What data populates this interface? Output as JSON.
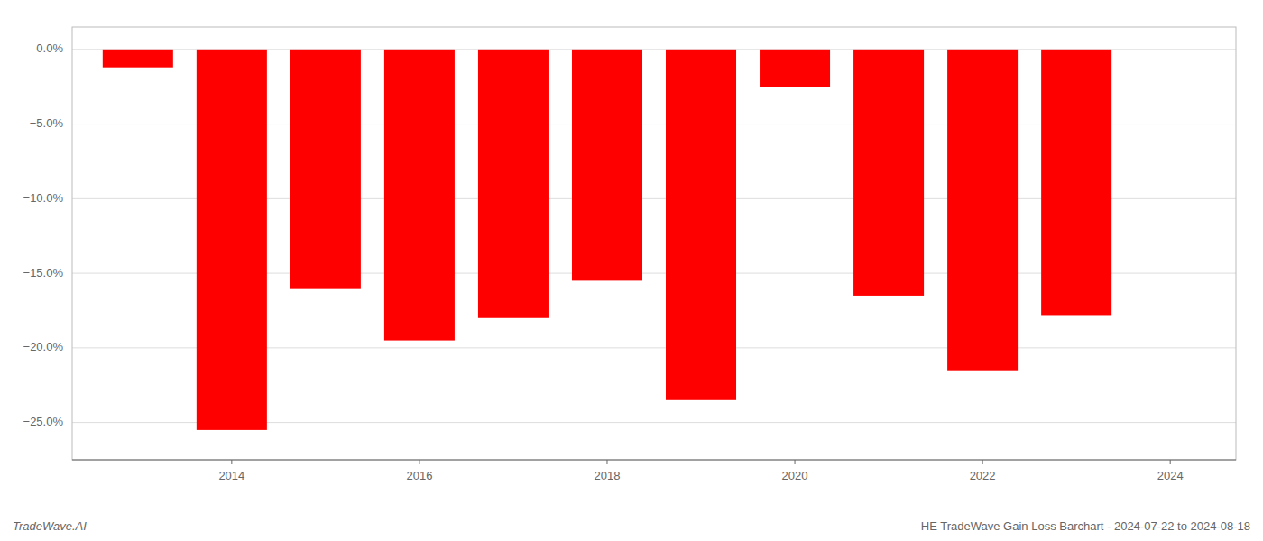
{
  "chart_data": {
    "type": "bar",
    "x": [
      2013,
      2014,
      2015,
      2016,
      2017,
      2018,
      2019,
      2020,
      2021,
      2022,
      2023
    ],
    "values": [
      -1.2,
      -25.5,
      -16.0,
      -19.5,
      -18.0,
      -15.5,
      -23.5,
      -2.5,
      -16.5,
      -21.5,
      -17.8
    ],
    "color": "#ff0000",
    "xlim": [
      2012.3,
      2024.7
    ],
    "xticks": [
      2014,
      2016,
      2018,
      2020,
      2022,
      2024
    ],
    "ylim": [
      -27.5,
      1.5
    ],
    "yticks": [
      {
        "value": 0.0,
        "label": "0.0%"
      },
      {
        "value": -5.0,
        "label": "−5.0%"
      },
      {
        "value": -10.0,
        "label": "−10.0%"
      },
      {
        "value": -15.0,
        "label": "−15.0%"
      },
      {
        "value": -20.0,
        "label": "−20.0%"
      },
      {
        "value": -25.0,
        "label": "−25.0%"
      }
    ],
    "grid": true,
    "annotations": [
      "TradeWave.AI",
      "HE TradeWave Gain Loss Barchart - 2024-07-22 to 2024-08-18"
    ]
  }
}
